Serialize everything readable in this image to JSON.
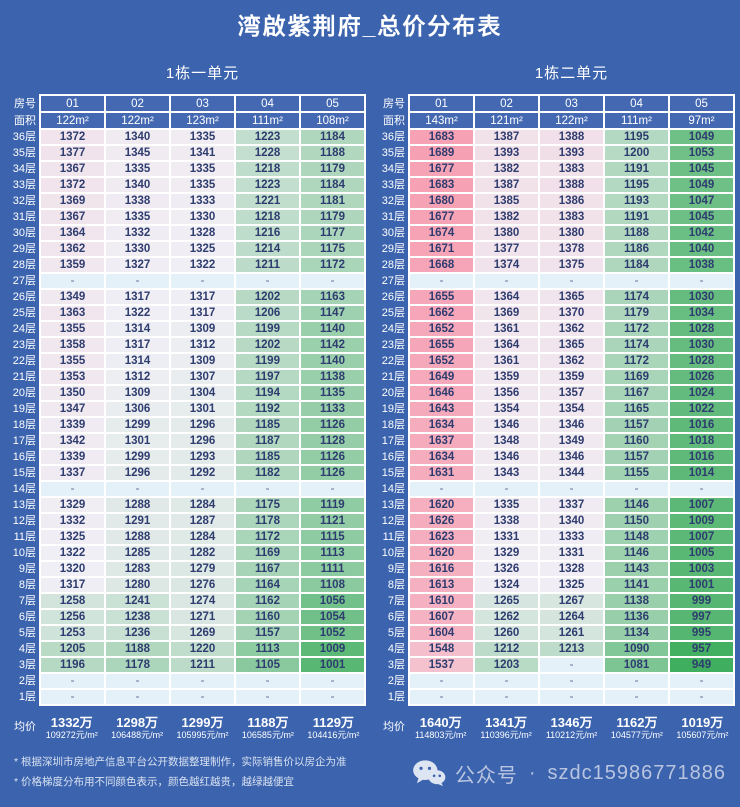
{
  "title": "湾啟紫荆府_总价分布表",
  "labels": {
    "room_row": "房号",
    "area_row": "面积",
    "avg_row": "均价",
    "floor_suffix": "层",
    "empty_marker": "-"
  },
  "colors": {
    "page_bg": "#3B63AE",
    "header_cell_bg": "#4469B2",
    "cell_text": "#2E3C6F",
    "empty_cell_bg": "#E4F1F9",
    "scale_low_green": "#3FAE5E",
    "scale_mid_white": "#F0EFF5",
    "scale_high_pink": "#F6A0B3",
    "border": "#FFFFFF"
  },
  "color_scale": {
    "min": 949,
    "mid": 1320,
    "max": 1689
  },
  "chart_data": [
    {
      "type": "heatmap",
      "title": "1栋一单元",
      "columns": [
        "01",
        "02",
        "03",
        "04",
        "05"
      ],
      "areas": [
        "122m²",
        "122m²",
        "123m²",
        "111m²",
        "108m²"
      ],
      "floors": [
        36,
        35,
        34,
        33,
        32,
        31,
        30,
        29,
        28,
        27,
        26,
        25,
        24,
        23,
        22,
        21,
        20,
        19,
        18,
        17,
        16,
        15,
        14,
        13,
        12,
        11,
        10,
        9,
        8,
        7,
        6,
        5,
        4,
        3,
        2,
        1
      ],
      "values": [
        [
          1372,
          1340,
          1335,
          1223,
          1184
        ],
        [
          1377,
          1345,
          1341,
          1228,
          1188
        ],
        [
          1367,
          1335,
          1335,
          1218,
          1179
        ],
        [
          1372,
          1340,
          1335,
          1223,
          1184
        ],
        [
          1369,
          1338,
          1333,
          1221,
          1181
        ],
        [
          1367,
          1335,
          1330,
          1218,
          1179
        ],
        [
          1364,
          1332,
          1328,
          1216,
          1177
        ],
        [
          1362,
          1330,
          1325,
          1214,
          1175
        ],
        [
          1359,
          1327,
          1322,
          1211,
          1172
        ],
        [
          null,
          null,
          null,
          null,
          null
        ],
        [
          1349,
          1317,
          1317,
          1202,
          1163
        ],
        [
          1363,
          1322,
          1317,
          1206,
          1147
        ],
        [
          1355,
          1314,
          1309,
          1199,
          1140
        ],
        [
          1358,
          1317,
          1312,
          1202,
          1142
        ],
        [
          1355,
          1314,
          1309,
          1199,
          1140
        ],
        [
          1353,
          1312,
          1307,
          1197,
          1138
        ],
        [
          1350,
          1309,
          1304,
          1194,
          1135
        ],
        [
          1347,
          1306,
          1301,
          1192,
          1133
        ],
        [
          1339,
          1299,
          1296,
          1185,
          1126
        ],
        [
          1342,
          1301,
          1296,
          1187,
          1128
        ],
        [
          1339,
          1299,
          1293,
          1185,
          1126
        ],
        [
          1337,
          1296,
          1292,
          1182,
          1126
        ],
        [
          null,
          null,
          null,
          null,
          null
        ],
        [
          1329,
          1288,
          1284,
          1175,
          1119
        ],
        [
          1332,
          1291,
          1287,
          1178,
          1121
        ],
        [
          1325,
          1288,
          1284,
          1172,
          1115
        ],
        [
          1322,
          1285,
          1282,
          1169,
          1113
        ],
        [
          1320,
          1283,
          1279,
          1167,
          1111
        ],
        [
          1317,
          1280,
          1276,
          1164,
          1108
        ],
        [
          1258,
          1241,
          1274,
          1162,
          1056
        ],
        [
          1256,
          1238,
          1271,
          1160,
          1054
        ],
        [
          1253,
          1236,
          1269,
          1157,
          1052
        ],
        [
          1205,
          1188,
          1220,
          1113,
          1009
        ],
        [
          1196,
          1178,
          1211,
          1105,
          1001
        ],
        [
          null,
          null,
          null,
          null,
          null
        ],
        [
          null,
          null,
          null,
          null,
          null
        ]
      ],
      "avg_total": [
        "1332万",
        "1298万",
        "1299万",
        "1188万",
        "1129万"
      ],
      "avg_unit": [
        "109272元/m²",
        "106488元/m²",
        "105995元/m²",
        "106585元/m²",
        "104416元/m²"
      ]
    },
    {
      "type": "heatmap",
      "title": "1栋二单元",
      "columns": [
        "01",
        "02",
        "03",
        "04",
        "05"
      ],
      "areas": [
        "143m²",
        "121m²",
        "122m²",
        "111m²",
        "97m²"
      ],
      "floors": [
        36,
        35,
        34,
        33,
        32,
        31,
        30,
        29,
        28,
        27,
        26,
        25,
        24,
        23,
        22,
        21,
        20,
        19,
        18,
        17,
        16,
        15,
        14,
        13,
        12,
        11,
        10,
        9,
        8,
        7,
        6,
        5,
        4,
        3,
        2,
        1
      ],
      "values": [
        [
          1683,
          1387,
          1388,
          1195,
          1049
        ],
        [
          1689,
          1393,
          1393,
          1200,
          1053
        ],
        [
          1677,
          1382,
          1383,
          1191,
          1045
        ],
        [
          1683,
          1387,
          1388,
          1195,
          1049
        ],
        [
          1680,
          1385,
          1386,
          1193,
          1047
        ],
        [
          1677,
          1382,
          1383,
          1191,
          1045
        ],
        [
          1674,
          1380,
          1380,
          1188,
          1042
        ],
        [
          1671,
          1377,
          1378,
          1186,
          1040
        ],
        [
          1668,
          1374,
          1375,
          1184,
          1038
        ],
        [
          null,
          null,
          null,
          null,
          null
        ],
        [
          1655,
          1364,
          1365,
          1174,
          1030
        ],
        [
          1662,
          1369,
          1370,
          1179,
          1034
        ],
        [
          1652,
          1361,
          1362,
          1172,
          1028
        ],
        [
          1655,
          1364,
          1365,
          1174,
          1030
        ],
        [
          1652,
          1361,
          1362,
          1172,
          1028
        ],
        [
          1649,
          1359,
          1359,
          1169,
          1026
        ],
        [
          1646,
          1356,
          1357,
          1167,
          1024
        ],
        [
          1643,
          1354,
          1354,
          1165,
          1022
        ],
        [
          1634,
          1346,
          1346,
          1157,
          1016
        ],
        [
          1637,
          1348,
          1349,
          1160,
          1018
        ],
        [
          1634,
          1346,
          1346,
          1157,
          1016
        ],
        [
          1631,
          1343,
          1344,
          1155,
          1014
        ],
        [
          null,
          null,
          null,
          null,
          null
        ],
        [
          1620,
          1335,
          1337,
          1146,
          1007
        ],
        [
          1626,
          1338,
          1340,
          1150,
          1009
        ],
        [
          1623,
          1331,
          1333,
          1148,
          1007
        ],
        [
          1620,
          1329,
          1331,
          1146,
          1005
        ],
        [
          1616,
          1326,
          1328,
          1143,
          1003
        ],
        [
          1613,
          1324,
          1325,
          1141,
          1001
        ],
        [
          1610,
          1265,
          1267,
          1138,
          999
        ],
        [
          1607,
          1262,
          1264,
          1136,
          997
        ],
        [
          1604,
          1260,
          1261,
          1134,
          995
        ],
        [
          1548,
          1212,
          1213,
          1090,
          957
        ],
        [
          1537,
          1203,
          null,
          1081,
          949
        ],
        [
          null,
          null,
          null,
          null,
          null
        ],
        [
          null,
          null,
          null,
          null,
          null
        ]
      ],
      "avg_total": [
        "1640万",
        "1341万",
        "1346万",
        "1162万",
        "1019万"
      ],
      "avg_unit": [
        "114803元/m²",
        "110396元/m²",
        "110212元/m²",
        "104577元/m²",
        "105607元/m²"
      ]
    }
  ],
  "footnotes": [
    "* 根据深圳市房地产信息平台公开数据整理制作，实际销售价以房企为准",
    "* 价格梯度分布用不同颜色表示，颜色越红越贵，越绿越便宜"
  ],
  "wechat": {
    "label": "公众号",
    "separator": "·",
    "account": "szdc15986771886"
  }
}
